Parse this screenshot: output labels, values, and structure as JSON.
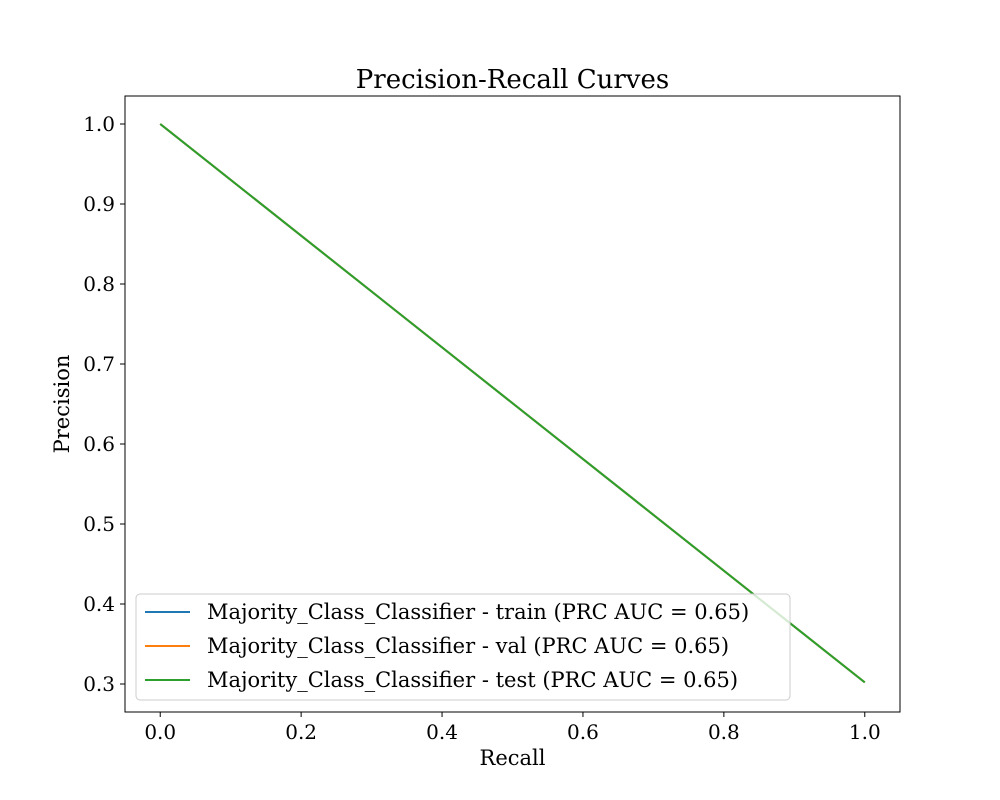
{
  "chart_data": {
    "type": "line",
    "title": "Precision-Recall Curves",
    "xlabel": "Recall",
    "ylabel": "Precision",
    "xlim": [
      -0.05,
      1.05
    ],
    "ylim": [
      0.265,
      1.035
    ],
    "xticks": [
      0.0,
      0.2,
      0.4,
      0.6,
      0.8,
      1.0
    ],
    "yticks": [
      0.3,
      0.4,
      0.5,
      0.6,
      0.7,
      0.8,
      0.9,
      1.0
    ],
    "xtick_labels": [
      "0.0",
      "0.2",
      "0.4",
      "0.6",
      "0.8",
      "1.0"
    ],
    "ytick_labels": [
      "0.3",
      "0.4",
      "0.5",
      "0.6",
      "0.7",
      "0.8",
      "0.9",
      "1.0"
    ],
    "grid": false,
    "legend_position": "lower-left",
    "series": [
      {
        "name": "Majority_Class_Classifier - train (PRC AUC = 0.65)",
        "color": "#1f77b4",
        "x": [
          0.0,
          1.0
        ],
        "y": [
          1.0,
          0.302
        ]
      },
      {
        "name": "Majority_Class_Classifier - val (PRC AUC = 0.65)",
        "color": "#ff7f0e",
        "x": [
          0.0,
          1.0
        ],
        "y": [
          1.0,
          0.302
        ]
      },
      {
        "name": "Majority_Class_Classifier - test (PRC AUC = 0.65)",
        "color": "#2ca02c",
        "x": [
          0.0,
          1.0
        ],
        "y": [
          1.0,
          0.302
        ]
      }
    ]
  }
}
